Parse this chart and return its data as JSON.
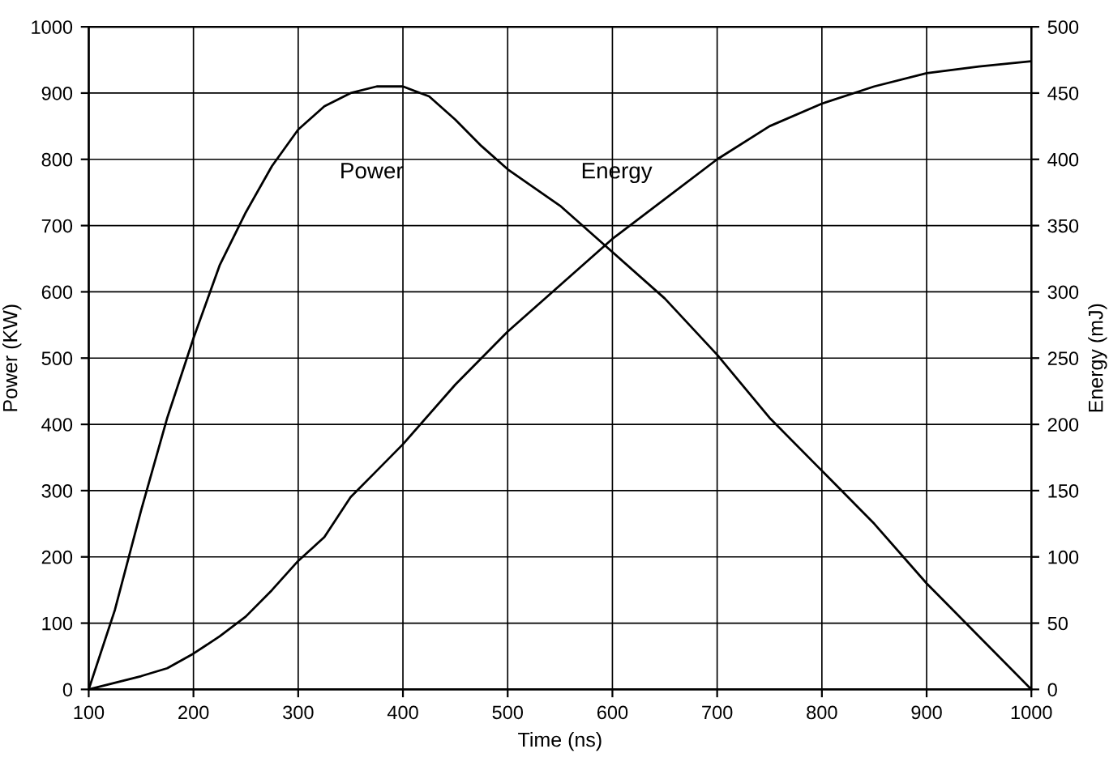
{
  "chart_data": {
    "type": "line",
    "xlabel": "Time (ns)",
    "ylabel": "Power (KW)",
    "y2label": "Energy (mJ)",
    "xlim": [
      100,
      1000
    ],
    "xticks": [
      100,
      200,
      300,
      400,
      500,
      600,
      700,
      800,
      900,
      1000
    ],
    "ylim": [
      0,
      1000
    ],
    "yticks": [
      0,
      100,
      200,
      300,
      400,
      500,
      600,
      700,
      800,
      900,
      1000
    ],
    "y2lim": [
      0,
      500
    ],
    "y2ticks": [
      0,
      50,
      100,
      150,
      200,
      250,
      300,
      350,
      400,
      450,
      500
    ],
    "grid": true,
    "marker": "none",
    "line_style": "solid",
    "series": [
      {
        "name": "Power",
        "color": "#000000",
        "x": [
          100,
          125,
          150,
          175,
          200,
          225,
          250,
          275,
          300,
          325,
          350,
          375,
          400,
          425,
          450,
          475,
          500,
          550,
          600,
          650,
          700,
          750,
          800,
          850,
          900,
          950,
          1000
        ],
        "values": [
          0,
          120,
          270,
          410,
          530,
          640,
          720,
          790,
          845,
          880,
          900,
          910,
          910,
          895,
          860,
          820,
          785,
          730,
          660,
          590,
          505,
          410,
          330,
          250,
          160,
          80,
          0
        ]
      },
      {
        "name": "Energy",
        "axis": "y2",
        "color": "#000000",
        "x": [
          100,
          150,
          175,
          200,
          225,
          250,
          275,
          300,
          325,
          350,
          375,
          400,
          450,
          500,
          550,
          600,
          650,
          700,
          750,
          800,
          850,
          900,
          950,
          1000
        ],
        "values": [
          0,
          10,
          16,
          27,
          40,
          55,
          75,
          97,
          115,
          145,
          165,
          185,
          230,
          270,
          305,
          340,
          370,
          400,
          425,
          442,
          455,
          465,
          470,
          474
        ]
      }
    ]
  }
}
